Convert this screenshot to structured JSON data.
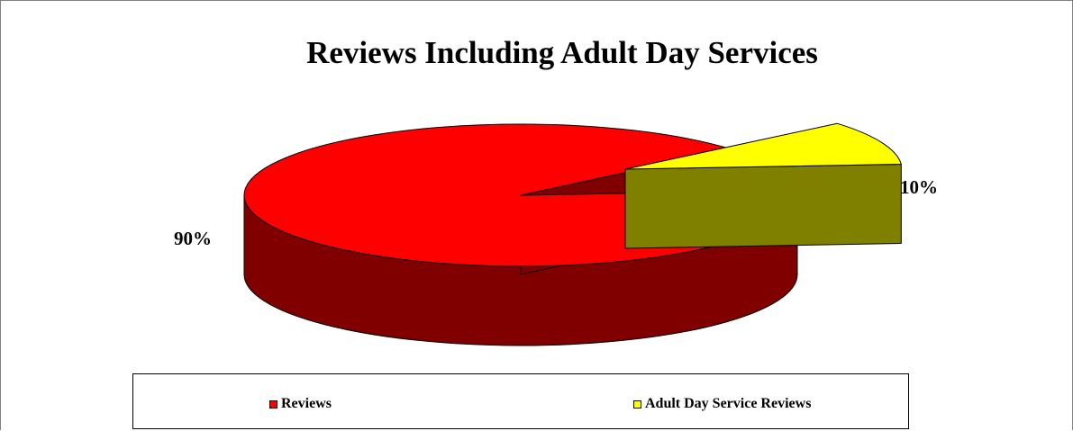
{
  "chart_data": {
    "type": "pie",
    "title": "Reviews Including Adult Day Services",
    "three_d": true,
    "legend_position": "bottom",
    "slices": [
      {
        "name": "Reviews",
        "value": 90,
        "label": "90%",
        "color": "#ff0000",
        "side_color": "#800000"
      },
      {
        "name": "Adult Day Service Reviews",
        "value": 10,
        "label": "10%",
        "color": "#ffff00",
        "side_color": "#808000",
        "exploded": true
      }
    ]
  }
}
